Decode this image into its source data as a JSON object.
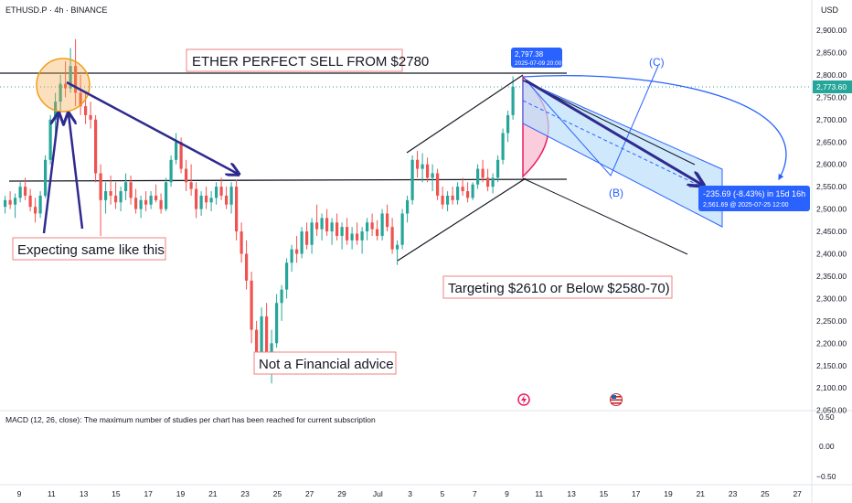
{
  "header": {
    "symbol": "ETHUSD.P · 4h · BINANCE",
    "currency": "USD"
  },
  "annotations": {
    "title_box": "ETHER PERFECT SELL FROM $2780",
    "expect_box": "Expecting same like this",
    "target_box": "Targeting $2610 or Below $2580-70)",
    "advice_box": "Not a Financial advice",
    "wave_b": "(B)",
    "wave_c": "(C)"
  },
  "tags": {
    "peak_price": "2,797.38",
    "peak_date": "2025-07-09 20:00",
    "current_price": "2,773.60",
    "measure_main": "-235.69 (-8.43%) in 15d 16h",
    "measure_sub": "2,561.69 @ 2025-07-25  12:00"
  },
  "macd": {
    "text": "MACD (12, 26, close): The maximum number of studies per chart has been reached for current subscription",
    "ticks": [
      "0.50",
      "0.00",
      "−0.50"
    ]
  },
  "colors": {
    "up": "#26a69a",
    "down": "#ef5350",
    "accent": "#2962ff",
    "navy": "#2e2a8f",
    "box_border": "#f08080"
  },
  "icons": [
    "lightning-icon",
    "us-flag-icon"
  ],
  "chart_data": {
    "type": "candlestick",
    "y_axis_ticks": [
      "2,900.00",
      "2,850.00",
      "2,800.00",
      "2,750.00",
      "2,700.00",
      "2,650.00",
      "2,600.00",
      "2,550.00",
      "2,500.00",
      "2,450.00",
      "2,400.00",
      "2,350.00",
      "2,300.00",
      "2,250.00",
      "2,200.00",
      "2,150.00",
      "2,100.00",
      "2,050.00"
    ],
    "x_axis_ticks": [
      "9",
      "11",
      "13",
      "15",
      "17",
      "19",
      "21",
      "23",
      "25",
      "27",
      "29",
      "Jul",
      "3",
      "5",
      "7",
      "9",
      "11",
      "13",
      "15",
      "17",
      "19",
      "21",
      "23",
      "25",
      "27"
    ],
    "ylim": [
      2030,
      2920
    ],
    "horizontal_levels": [
      2797.38,
      2560
    ],
    "candles": [
      {
        "o": 2505,
        "h": 2530,
        "l": 2490,
        "c": 2520
      },
      {
        "o": 2520,
        "h": 2540,
        "l": 2500,
        "c": 2510
      },
      {
        "o": 2510,
        "h": 2535,
        "l": 2480,
        "c": 2525
      },
      {
        "o": 2525,
        "h": 2560,
        "l": 2515,
        "c": 2550
      },
      {
        "o": 2550,
        "h": 2570,
        "l": 2520,
        "c": 2530
      },
      {
        "o": 2530,
        "h": 2545,
        "l": 2495,
        "c": 2505
      },
      {
        "o": 2505,
        "h": 2525,
        "l": 2470,
        "c": 2490
      },
      {
        "o": 2490,
        "h": 2540,
        "l": 2480,
        "c": 2530
      },
      {
        "o": 2530,
        "h": 2620,
        "l": 2525,
        "c": 2610
      },
      {
        "o": 2610,
        "h": 2710,
        "l": 2600,
        "c": 2700
      },
      {
        "o": 2700,
        "h": 2760,
        "l": 2660,
        "c": 2740
      },
      {
        "o": 2740,
        "h": 2800,
        "l": 2720,
        "c": 2780
      },
      {
        "o": 2780,
        "h": 2830,
        "l": 2750,
        "c": 2770
      },
      {
        "o": 2770,
        "h": 2860,
        "l": 2760,
        "c": 2820
      },
      {
        "o": 2820,
        "h": 2880,
        "l": 2730,
        "c": 2760
      },
      {
        "o": 2760,
        "h": 2800,
        "l": 2710,
        "c": 2730
      },
      {
        "o": 2730,
        "h": 2760,
        "l": 2690,
        "c": 2710
      },
      {
        "o": 2710,
        "h": 2740,
        "l": 2680,
        "c": 2700
      },
      {
        "o": 2700,
        "h": 2710,
        "l": 2560,
        "c": 2580
      },
      {
        "o": 2580,
        "h": 2600,
        "l": 2440,
        "c": 2520
      },
      {
        "o": 2520,
        "h": 2560,
        "l": 2490,
        "c": 2540
      },
      {
        "o": 2540,
        "h": 2575,
        "l": 2510,
        "c": 2530
      },
      {
        "o": 2530,
        "h": 2560,
        "l": 2500,
        "c": 2515
      },
      {
        "o": 2515,
        "h": 2550,
        "l": 2495,
        "c": 2540
      },
      {
        "o": 2540,
        "h": 2580,
        "l": 2520,
        "c": 2560
      },
      {
        "o": 2560,
        "h": 2575,
        "l": 2510,
        "c": 2525
      },
      {
        "o": 2525,
        "h": 2545,
        "l": 2490,
        "c": 2500
      },
      {
        "o": 2500,
        "h": 2530,
        "l": 2480,
        "c": 2520
      },
      {
        "o": 2520,
        "h": 2540,
        "l": 2495,
        "c": 2510
      },
      {
        "o": 2510,
        "h": 2540,
        "l": 2500,
        "c": 2530
      },
      {
        "o": 2530,
        "h": 2555,
        "l": 2515,
        "c": 2520
      },
      {
        "o": 2520,
        "h": 2535,
        "l": 2490,
        "c": 2500
      },
      {
        "o": 2500,
        "h": 2570,
        "l": 2495,
        "c": 2560
      },
      {
        "o": 2560,
        "h": 2620,
        "l": 2550,
        "c": 2610
      },
      {
        "o": 2610,
        "h": 2670,
        "l": 2600,
        "c": 2650
      },
      {
        "o": 2650,
        "h": 2660,
        "l": 2580,
        "c": 2590
      },
      {
        "o": 2590,
        "h": 2610,
        "l": 2540,
        "c": 2560
      },
      {
        "o": 2560,
        "h": 2600,
        "l": 2530,
        "c": 2545
      },
      {
        "o": 2545,
        "h": 2560,
        "l": 2480,
        "c": 2500
      },
      {
        "o": 2500,
        "h": 2540,
        "l": 2485,
        "c": 2530
      },
      {
        "o": 2530,
        "h": 2550,
        "l": 2500,
        "c": 2515
      },
      {
        "o": 2515,
        "h": 2540,
        "l": 2495,
        "c": 2525
      },
      {
        "o": 2525,
        "h": 2560,
        "l": 2510,
        "c": 2550
      },
      {
        "o": 2550,
        "h": 2570,
        "l": 2520,
        "c": 2530
      },
      {
        "o": 2530,
        "h": 2550,
        "l": 2500,
        "c": 2510
      },
      {
        "o": 2510,
        "h": 2560,
        "l": 2490,
        "c": 2550
      },
      {
        "o": 2550,
        "h": 2565,
        "l": 2430,
        "c": 2450
      },
      {
        "o": 2450,
        "h": 2470,
        "l": 2380,
        "c": 2400
      },
      {
        "o": 2400,
        "h": 2430,
        "l": 2320,
        "c": 2340
      },
      {
        "o": 2340,
        "h": 2360,
        "l": 2200,
        "c": 2230
      },
      {
        "o": 2230,
        "h": 2250,
        "l": 2140,
        "c": 2160
      },
      {
        "o": 2160,
        "h": 2280,
        "l": 2150,
        "c": 2260
      },
      {
        "o": 2260,
        "h": 2290,
        "l": 2160,
        "c": 2180
      },
      {
        "o": 2180,
        "h": 2230,
        "l": 2110,
        "c": 2200
      },
      {
        "o": 2200,
        "h": 2310,
        "l": 2190,
        "c": 2290
      },
      {
        "o": 2290,
        "h": 2330,
        "l": 2250,
        "c": 2320
      },
      {
        "o": 2320,
        "h": 2390,
        "l": 2300,
        "c": 2380
      },
      {
        "o": 2380,
        "h": 2420,
        "l": 2360,
        "c": 2410
      },
      {
        "o": 2410,
        "h": 2440,
        "l": 2380,
        "c": 2400
      },
      {
        "o": 2400,
        "h": 2460,
        "l": 2390,
        "c": 2450
      },
      {
        "o": 2450,
        "h": 2470,
        "l": 2410,
        "c": 2420
      },
      {
        "o": 2420,
        "h": 2480,
        "l": 2400,
        "c": 2470
      },
      {
        "o": 2470,
        "h": 2510,
        "l": 2440,
        "c": 2455
      },
      {
        "o": 2455,
        "h": 2490,
        "l": 2430,
        "c": 2480
      },
      {
        "o": 2480,
        "h": 2500,
        "l": 2440,
        "c": 2450
      },
      {
        "o": 2450,
        "h": 2480,
        "l": 2420,
        "c": 2470
      },
      {
        "o": 2470,
        "h": 2490,
        "l": 2430,
        "c": 2440
      },
      {
        "o": 2440,
        "h": 2470,
        "l": 2410,
        "c": 2460
      },
      {
        "o": 2460,
        "h": 2480,
        "l": 2420,
        "c": 2430
      },
      {
        "o": 2430,
        "h": 2460,
        "l": 2410,
        "c": 2445
      },
      {
        "o": 2445,
        "h": 2470,
        "l": 2420,
        "c": 2430
      },
      {
        "o": 2430,
        "h": 2460,
        "l": 2400,
        "c": 2450
      },
      {
        "o": 2450,
        "h": 2480,
        "l": 2430,
        "c": 2470
      },
      {
        "o": 2470,
        "h": 2490,
        "l": 2440,
        "c": 2455
      },
      {
        "o": 2455,
        "h": 2475,
        "l": 2430,
        "c": 2440
      },
      {
        "o": 2440,
        "h": 2500,
        "l": 2430,
        "c": 2490
      },
      {
        "o": 2490,
        "h": 2510,
        "l": 2450,
        "c": 2460
      },
      {
        "o": 2460,
        "h": 2480,
        "l": 2400,
        "c": 2410
      },
      {
        "o": 2410,
        "h": 2430,
        "l": 2375,
        "c": 2420
      },
      {
        "o": 2420,
        "h": 2500,
        "l": 2410,
        "c": 2490
      },
      {
        "o": 2490,
        "h": 2530,
        "l": 2470,
        "c": 2520
      },
      {
        "o": 2520,
        "h": 2620,
        "l": 2510,
        "c": 2610
      },
      {
        "o": 2610,
        "h": 2630,
        "l": 2570,
        "c": 2590
      },
      {
        "o": 2590,
        "h": 2625,
        "l": 2560,
        "c": 2600
      },
      {
        "o": 2600,
        "h": 2615,
        "l": 2560,
        "c": 2570
      },
      {
        "o": 2570,
        "h": 2600,
        "l": 2540,
        "c": 2580
      },
      {
        "o": 2580,
        "h": 2590,
        "l": 2520,
        "c": 2530
      },
      {
        "o": 2530,
        "h": 2550,
        "l": 2500,
        "c": 2510
      },
      {
        "o": 2510,
        "h": 2540,
        "l": 2495,
        "c": 2530
      },
      {
        "o": 2530,
        "h": 2550,
        "l": 2510,
        "c": 2520
      },
      {
        "o": 2520,
        "h": 2560,
        "l": 2510,
        "c": 2550
      },
      {
        "o": 2550,
        "h": 2570,
        "l": 2530,
        "c": 2540
      },
      {
        "o": 2540,
        "h": 2560,
        "l": 2515,
        "c": 2525
      },
      {
        "o": 2525,
        "h": 2560,
        "l": 2520,
        "c": 2555
      },
      {
        "o": 2555,
        "h": 2600,
        "l": 2545,
        "c": 2590
      },
      {
        "o": 2590,
        "h": 2610,
        "l": 2560,
        "c": 2570
      },
      {
        "o": 2570,
        "h": 2590,
        "l": 2540,
        "c": 2550
      },
      {
        "o": 2550,
        "h": 2580,
        "l": 2535,
        "c": 2570
      },
      {
        "o": 2570,
        "h": 2620,
        "l": 2560,
        "c": 2610
      },
      {
        "o": 2610,
        "h": 2680,
        "l": 2600,
        "c": 2670
      },
      {
        "o": 2670,
        "h": 2720,
        "l": 2650,
        "c": 2710
      },
      {
        "o": 2710,
        "h": 2797,
        "l": 2700,
        "c": 2773.6
      }
    ]
  }
}
